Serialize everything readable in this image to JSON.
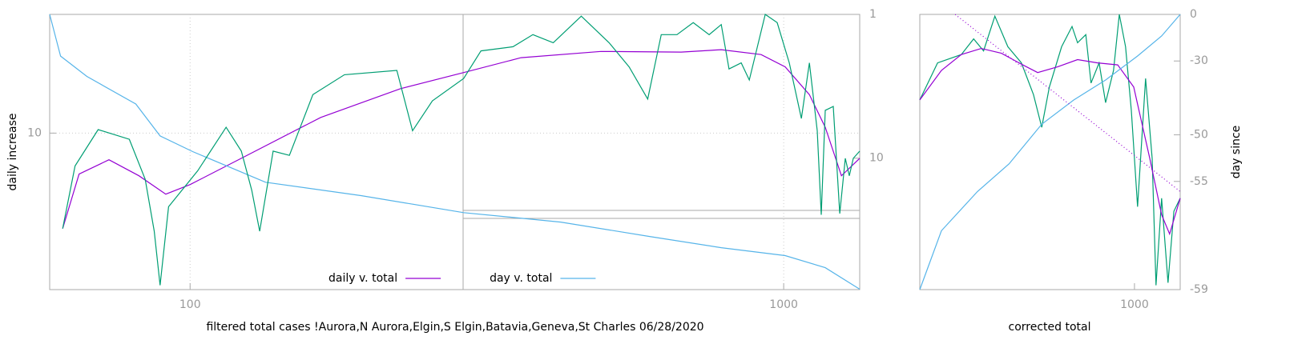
{
  "chart_data": [
    {
      "type": "line",
      "xlabel": "filtered total cases !Aurora,N Aurora,Elgin,S Elgin,Batavia,Geneva,St Charles 06/28/2020",
      "ylabel": "daily increase",
      "xlog": true,
      "ylog": true,
      "y2log": true,
      "grid": true,
      "legend": "bottom",
      "xlim": [
        58,
        1343
      ],
      "xticks": [
        100,
        1000
      ],
      "ylim": [
        2.7,
        27
      ],
      "yticks": [
        10
      ],
      "y2lim": [
        82,
        1
      ],
      "y2ticks": [
        1,
        10
      ],
      "series": [
        {
          "name": "daily v. total",
          "color": "#9400d3",
          "x": [
            61,
            65,
            73,
            82,
            91,
            100,
            122,
            166,
            226,
            289,
            361,
            492,
            672,
            785,
            916,
            1006,
            1105,
            1175,
            1251,
            1343
          ],
          "values": [
            4.5,
            7.1,
            8.0,
            7.0,
            6.0,
            6.5,
            8.1,
            11.4,
            14.5,
            16.6,
            18.8,
            19.8,
            19.7,
            20.1,
            19.3,
            17.4,
            13.8,
            10.5,
            7.0,
            8.1
          ]
        },
        {
          "name": "day v. total",
          "color": "#56b4e9",
          "axis": "y2",
          "x": [
            58,
            60.5,
            67,
            81,
            89,
            101,
            134,
            194,
            289,
            421,
            593,
            785,
            1006,
            1175,
            1343
          ],
          "values": [
            1,
            1.95,
            2.7,
            4.2,
            7.0,
            9.0,
            14.7,
            18.2,
            23.9,
            27.8,
            35,
            41.9,
            47.6,
            57.7,
            81.5
          ]
        },
        {
          "color": "#009e73",
          "x": [
            61,
            64,
            70,
            79,
            84,
            87,
            89,
            92,
            103,
            115,
            122,
            127,
            131,
            138,
            147,
            161,
            182,
            223,
            237,
            256,
            289,
            309,
            350,
            378,
            409,
            456,
            508,
            549,
            590,
            622,
            661,
            704,
            749,
            785,
            809,
            848,
            875,
            931,
            975,
            1022,
            1071,
            1105,
            1139,
            1157,
            1175,
            1212,
            1243,
            1270,
            1290,
            1310,
            1343
          ],
          "values": [
            4.5,
            7.6,
            10.3,
            9.5,
            6.8,
            4.4,
            2.8,
            5.4,
            7.3,
            10.5,
            8.6,
            6.2,
            4.4,
            8.6,
            8.3,
            13.8,
            16.3,
            16.9,
            10.2,
            13.1,
            15.8,
            19.9,
            20.6,
            22.8,
            21.3,
            26.6,
            21.3,
            17.4,
            13.3,
            22.8,
            22.8,
            25.2,
            22.8,
            24.8,
            17.1,
            18.0,
            15.6,
            27,
            25.2,
            18.0,
            11.3,
            18.0,
            10.2,
            5.05,
            12.1,
            12.5,
            5.1,
            8.1,
            7.0,
            8.1,
            8.6
          ]
        }
      ]
    },
    {
      "type": "line",
      "xlabel": "corrected total",
      "y2label": "day since",
      "xlog": true,
      "ylog": true,
      "y2log": true,
      "grid": false,
      "xlim": [
        435,
        1194
      ],
      "xticks": [
        1000
      ],
      "ylim": [
        2.7,
        27
      ],
      "y2lim": [
        -59,
        0
      ],
      "y2ticks": [
        0,
        -30,
        -50,
        -55,
        -59
      ],
      "series": [
        {
          "color": "#009e73",
          "x": [
            435,
            466,
            511,
            536,
            557,
            582,
            612,
            645,
            676,
            698,
            719,
            754,
            785,
            802,
            828,
            845,
            872,
            894,
            922,
            943,
            966,
            988,
            1012,
            1044,
            1071,
            1087,
            1111,
            1139,
            1165,
            1194
          ],
          "values": [
            13.2,
            18.0,
            19.3,
            22.0,
            19.9,
            26.6,
            20.6,
            18.0,
            13.8,
            10.5,
            14.7,
            20.6,
            24.4,
            21.3,
            22.8,
            15.2,
            18.0,
            12.9,
            16.9,
            27,
            20.6,
            12.1,
            5.4,
            15.8,
            8.1,
            2.8,
            5.8,
            2.86,
            5.2,
            5.8
          ]
        },
        {
          "color": "#9400d3",
          "x": [
            435,
            473,
            511,
            552,
            597,
            645,
            687,
            742,
            802,
            867,
            937,
            997,
            1061,
            1111,
            1146,
            1194
          ],
          "values": [
            13.2,
            16.9,
            19.3,
            20.3,
            19.5,
            17.8,
            16.6,
            17.4,
            18.5,
            18.0,
            17.7,
            14.7,
            8.1,
            5.05,
            4.3,
            5.8
          ]
        },
        {
          "color": "#56b4e9",
          "axis": "y2",
          "x": [
            435,
            473,
            544,
            615,
            698,
            790,
            894,
            1012,
            1111,
            1194
          ],
          "values": [
            -59,
            -57.6,
            -55.7,
            -53.5,
            -48.3,
            -43.2,
            -37.4,
            -27.7,
            -16.5,
            0
          ]
        },
        {
          "color": "#9400d3",
          "axis": "y2",
          "dash": true,
          "x": [
            499,
            1194
          ],
          "values": [
            0,
            -55.7
          ]
        }
      ]
    }
  ]
}
